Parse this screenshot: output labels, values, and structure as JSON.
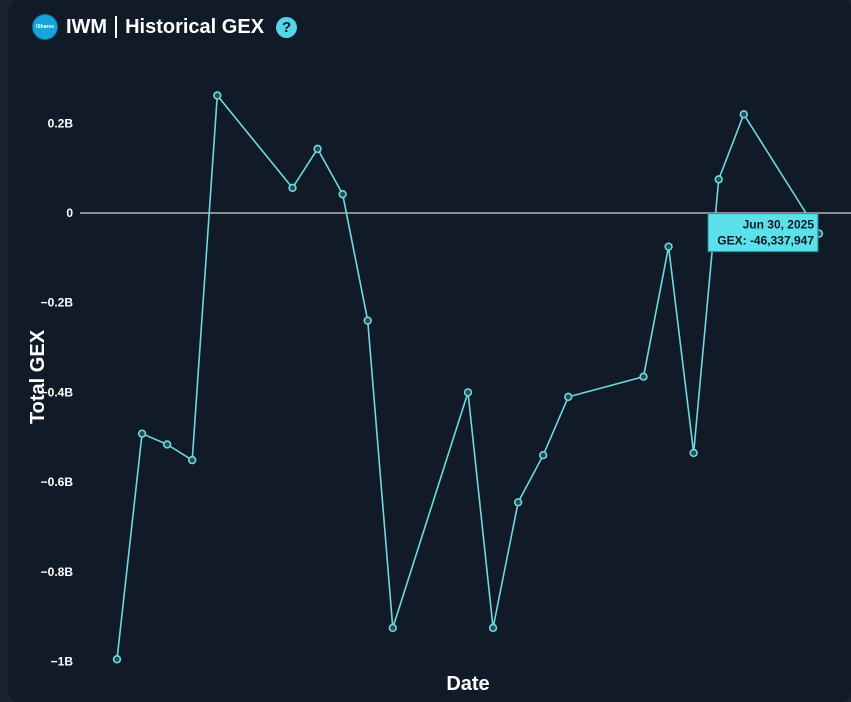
{
  "header": {
    "logo_text": "iShares",
    "ticker": "IWM",
    "title": "Historical GEX",
    "help_glyph": "?"
  },
  "colors": {
    "background": "#111b27",
    "line": "#6fd8df",
    "zero_line": "#ffffff",
    "tooltip_bg": "#5ce1ea",
    "text": "#ffffff"
  },
  "chart_data": {
    "type": "line",
    "xlabel": "Date",
    "ylabel": "Total GEX",
    "ylim": [
      -1.0,
      0.28
    ],
    "yticks": [
      {
        "value": 0.2,
        "label": "0.2B"
      },
      {
        "value": 0,
        "label": "0"
      },
      {
        "value": -0.2,
        "label": "−0.2B"
      },
      {
        "value": -0.4,
        "label": "−0.4B"
      },
      {
        "value": -0.6,
        "label": "−0.6B"
      },
      {
        "value": -0.8,
        "label": "−0.8B"
      },
      {
        "value": -1.0,
        "label": "−1B"
      }
    ],
    "grid": false,
    "zero_line": true,
    "series": [
      {
        "x_index": [
          0,
          1,
          2,
          3,
          4,
          7,
          8,
          9,
          10,
          11,
          14,
          15,
          16,
          17,
          18,
          21,
          22,
          23,
          24,
          25,
          28
        ],
        "values": [
          -0.995,
          -0.492,
          -0.516,
          -0.551,
          0.262,
          0.056,
          0.143,
          0.042,
          -0.24,
          -0.925,
          -0.4,
          -0.925,
          -0.645,
          -0.54,
          -0.41,
          -0.365,
          -0.075,
          -0.535,
          0.075,
          0.22,
          -0.046
        ]
      }
    ],
    "x_index_range": [
      0,
      28
    ],
    "tooltip": {
      "date": "Jun 30, 2025",
      "label": "GEX: -46,337,947",
      "value": -0.046337947,
      "point_index": 20
    }
  }
}
